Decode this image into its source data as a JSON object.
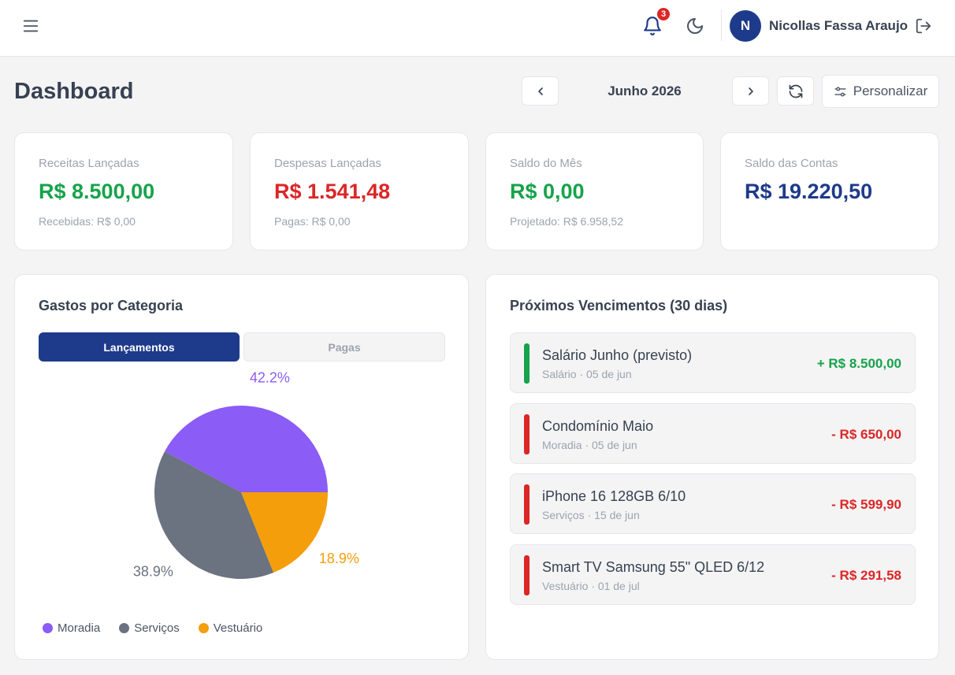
{
  "header": {
    "notifications_count": "3",
    "user_initial": "N",
    "user_name": "Nicollas Fassa Araujo"
  },
  "toolbar": {
    "title": "Dashboard",
    "month": "Junho 2026",
    "customize_label": "Personalizar"
  },
  "stats": [
    {
      "label": "Receitas Lançadas",
      "value": "R$ 8.500,00",
      "sub": "Recebidas: R$ 0,00",
      "color": "#16a34a"
    },
    {
      "label": "Despesas Lançadas",
      "value": "R$ 1.541,48",
      "sub": "Pagas: R$ 0,00",
      "color": "#dc2626"
    },
    {
      "label": "Saldo do Mês",
      "value": "R$ 0,00",
      "sub": "Projetado: R$ 6.958,52",
      "color": "#16a34a"
    },
    {
      "label": "Saldo das Contas",
      "value": "R$ 19.220,50",
      "sub": "",
      "color": "#1e3a8a"
    }
  ],
  "category_panel": {
    "title": "Gastos por Categoria",
    "tabs": [
      "Lançamentos",
      "Pagas"
    ],
    "active_tab": "Lançamentos"
  },
  "chart_data": {
    "type": "pie",
    "categories": [
      "Moradia",
      "Serviços",
      "Vestuário"
    ],
    "values": [
      42.2,
      38.9,
      18.9
    ],
    "labels": [
      "42.2%",
      "38.9%",
      "18.9%"
    ],
    "colors": [
      "#8b5cf6",
      "#6b7280",
      "#f59e0b"
    ],
    "legend_position": "bottom-left"
  },
  "due_panel": {
    "title": "Próximos Vencimentos (30 dias)",
    "items": [
      {
        "title": "Salário Junho (previsto)",
        "sub": "Salário · 05 de jun",
        "amount": "+ R$ 8.500,00",
        "type": "income",
        "color": "#16a34a"
      },
      {
        "title": "Condomínio Maio",
        "sub": "Moradia · 05 de jun",
        "amount": "- R$ 650,00",
        "type": "expense",
        "color": "#dc2626"
      },
      {
        "title": "iPhone 16 128GB 6/10",
        "sub": "Serviços · 15 de jun",
        "amount": "- R$ 599,90",
        "type": "expense",
        "color": "#dc2626"
      },
      {
        "title": "Smart TV Samsung 55\" QLED 6/12",
        "sub": "Vestuário · 01 de jul",
        "amount": "- R$ 291,58",
        "type": "expense",
        "color": "#dc2626"
      }
    ]
  },
  "icons": [
    "menu-icon",
    "bell-icon",
    "moon-icon",
    "logout-icon",
    "chevron-left-icon",
    "chevron-right-icon",
    "refresh-icon",
    "sliders-icon"
  ]
}
